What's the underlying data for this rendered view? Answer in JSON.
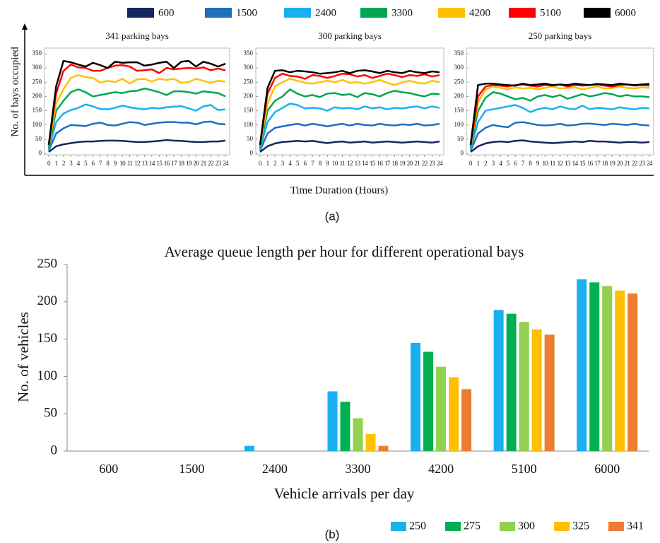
{
  "chart_data": [
    {
      "type": "line",
      "title": "341 parking bays",
      "x": [
        0,
        1,
        2,
        3,
        4,
        5,
        6,
        7,
        8,
        9,
        10,
        11,
        12,
        13,
        14,
        15,
        16,
        17,
        18,
        19,
        20,
        21,
        22,
        23,
        24
      ],
      "xlim": [
        0,
        24
      ],
      "xticks": [
        0,
        1,
        2,
        3,
        4,
        5,
        6,
        7,
        8,
        9,
        10,
        11,
        12,
        13,
        14,
        15,
        16,
        17,
        18,
        19,
        20,
        21,
        22,
        23,
        24
      ],
      "ylim": [
        0,
        350
      ],
      "yticks": [
        0,
        50,
        100,
        150,
        200,
        250,
        300,
        350
      ],
      "series": [
        {
          "name": "600",
          "color": "#16275e",
          "values": [
            5,
            25,
            32,
            36,
            40,
            42,
            42,
            44,
            45,
            45,
            44,
            42,
            40,
            40,
            42,
            44,
            47,
            45,
            44,
            42,
            40,
            40,
            42,
            42,
            45
          ]
        },
        {
          "name": "1500",
          "color": "#1f6fbf",
          "values": [
            10,
            70,
            88,
            100,
            98,
            96,
            104,
            108,
            100,
            98,
            104,
            110,
            108,
            100,
            104,
            108,
            110,
            110,
            108,
            108,
            102,
            110,
            112,
            104,
            102
          ]
        },
        {
          "name": "2400",
          "color": "#1ab0f0",
          "values": [
            15,
            110,
            140,
            152,
            160,
            172,
            165,
            156,
            155,
            160,
            168,
            162,
            158,
            155,
            160,
            158,
            162,
            164,
            166,
            158,
            150,
            165,
            170,
            152,
            155
          ]
        },
        {
          "name": "3300",
          "color": "#00a651",
          "values": [
            20,
            150,
            185,
            215,
            225,
            215,
            200,
            205,
            210,
            215,
            212,
            218,
            220,
            228,
            222,
            215,
            205,
            218,
            218,
            215,
            210,
            218,
            215,
            212,
            200
          ]
        },
        {
          "name": "4200",
          "color": "#ffc000",
          "values": [
            25,
            175,
            225,
            265,
            275,
            268,
            265,
            248,
            255,
            250,
            262,
            245,
            260,
            262,
            252,
            262,
            258,
            262,
            248,
            250,
            262,
            255,
            248,
            255,
            252
          ]
        },
        {
          "name": "5100",
          "color": "#ff0000",
          "values": [
            28,
            210,
            290,
            312,
            302,
            300,
            290,
            290,
            300,
            308,
            310,
            305,
            290,
            292,
            295,
            282,
            300,
            295,
            298,
            300,
            298,
            302,
            292,
            298,
            292
          ]
        },
        {
          "name": "6000",
          "color": "#000000",
          "values": [
            30,
            235,
            325,
            320,
            312,
            305,
            318,
            310,
            300,
            322,
            318,
            320,
            320,
            308,
            312,
            318,
            322,
            300,
            322,
            325,
            305,
            322,
            315,
            305,
            315
          ]
        }
      ]
    },
    {
      "type": "line",
      "title": "300 parking bays",
      "x": [
        0,
        1,
        2,
        3,
        4,
        5,
        6,
        7,
        8,
        9,
        10,
        11,
        12,
        13,
        14,
        15,
        16,
        17,
        18,
        19,
        20,
        21,
        22,
        23,
        24
      ],
      "xlim": [
        0,
        24
      ],
      "xticks": [
        0,
        1,
        2,
        3,
        4,
        5,
        6,
        7,
        8,
        9,
        10,
        11,
        12,
        13,
        14,
        15,
        16,
        17,
        18,
        19,
        20,
        21,
        22,
        23,
        24
      ],
      "ylim": [
        0,
        350
      ],
      "yticks": [
        0,
        50,
        100,
        150,
        200,
        250,
        300,
        350
      ],
      "series": [
        {
          "name": "600",
          "color": "#16275e",
          "values": [
            5,
            25,
            35,
            40,
            42,
            44,
            42,
            44,
            40,
            36,
            40,
            42,
            38,
            40,
            42,
            38,
            40,
            42,
            40,
            38,
            40,
            42,
            40,
            38,
            42
          ]
        },
        {
          "name": "1500",
          "color": "#1f6fbf",
          "values": [
            10,
            70,
            90,
            95,
            100,
            104,
            98,
            104,
            100,
            95,
            100,
            104,
            98,
            104,
            100,
            98,
            104,
            100,
            98,
            102,
            100,
            104,
            98,
            100,
            104
          ]
        },
        {
          "name": "2400",
          "color": "#1ab0f0",
          "values": [
            15,
            110,
            145,
            160,
            175,
            170,
            158,
            160,
            158,
            150,
            162,
            158,
            160,
            155,
            165,
            158,
            162,
            155,
            160,
            158,
            162,
            165,
            158,
            165,
            160
          ]
        },
        {
          "name": "3300",
          "color": "#00a651",
          "values": [
            20,
            150,
            185,
            200,
            225,
            210,
            200,
            205,
            198,
            210,
            212,
            205,
            208,
            198,
            212,
            208,
            200,
            212,
            220,
            215,
            212,
            205,
            200,
            210,
            208
          ]
        },
        {
          "name": "4200",
          "color": "#ffc000",
          "values": [
            25,
            175,
            235,
            250,
            262,
            255,
            248,
            245,
            250,
            255,
            250,
            258,
            248,
            250,
            245,
            250,
            258,
            248,
            240,
            250,
            255,
            248,
            245,
            255,
            250
          ]
        },
        {
          "name": "5100",
          "color": "#ff0000",
          "values": [
            28,
            210,
            265,
            280,
            272,
            270,
            262,
            275,
            272,
            265,
            272,
            280,
            278,
            270,
            275,
            265,
            272,
            280,
            275,
            268,
            275,
            272,
            278,
            270,
            275
          ]
        },
        {
          "name": "6000",
          "color": "#000000",
          "values": [
            30,
            230,
            290,
            292,
            285,
            290,
            288,
            285,
            280,
            282,
            285,
            290,
            282,
            290,
            292,
            288,
            282,
            290,
            285,
            282,
            290,
            285,
            282,
            288,
            285
          ]
        }
      ]
    },
    {
      "type": "line",
      "title": "250 parking bays",
      "x": [
        0,
        1,
        2,
        3,
        4,
        5,
        6,
        7,
        8,
        9,
        10,
        11,
        12,
        13,
        14,
        15,
        16,
        17,
        18,
        19,
        20,
        21,
        22,
        23,
        24
      ],
      "xlim": [
        0,
        24
      ],
      "xticks": [
        0,
        1,
        2,
        3,
        4,
        5,
        6,
        7,
        8,
        9,
        10,
        11,
        12,
        13,
        14,
        15,
        16,
        17,
        18,
        19,
        20,
        21,
        22,
        23,
        24
      ],
      "ylim": [
        0,
        350
      ],
      "yticks": [
        0,
        50,
        100,
        150,
        200,
        250,
        300,
        350
      ],
      "series": [
        {
          "name": "600",
          "color": "#16275e",
          "values": [
            5,
            25,
            35,
            40,
            42,
            40,
            44,
            46,
            42,
            40,
            38,
            36,
            38,
            40,
            42,
            40,
            44,
            42,
            42,
            40,
            38,
            40,
            40,
            38,
            40
          ]
        },
        {
          "name": "1500",
          "color": "#1f6fbf",
          "values": [
            10,
            70,
            90,
            100,
            95,
            92,
            108,
            110,
            105,
            100,
            98,
            100,
            104,
            98,
            100,
            104,
            105,
            102,
            100,
            104,
            102,
            100,
            104,
            100,
            98
          ]
        },
        {
          "name": "2400",
          "color": "#1ab0f0",
          "values": [
            15,
            110,
            150,
            155,
            160,
            165,
            170,
            160,
            145,
            155,
            160,
            155,
            165,
            158,
            155,
            168,
            155,
            160,
            158,
            155,
            162,
            158,
            155,
            160,
            158
          ]
        },
        {
          "name": "3300",
          "color": "#00a651",
          "values": [
            20,
            150,
            195,
            215,
            210,
            200,
            190,
            195,
            185,
            200,
            205,
            198,
            205,
            192,
            200,
            208,
            200,
            205,
            212,
            208,
            200,
            205,
            200,
            200,
            198
          ]
        },
        {
          "name": "4200",
          "color": "#ffc000",
          "values": [
            25,
            180,
            225,
            235,
            230,
            225,
            232,
            228,
            230,
            225,
            230,
            235,
            228,
            230,
            232,
            225,
            230,
            235,
            228,
            230,
            235,
            230,
            228,
            232,
            230
          ]
        },
        {
          "name": "5100",
          "color": "#ff0000",
          "values": [
            28,
            200,
            235,
            240,
            238,
            235,
            240,
            242,
            238,
            235,
            240,
            238,
            242,
            235,
            240,
            238,
            240,
            242,
            238,
            235,
            240,
            242,
            238,
            240,
            238
          ]
        },
        {
          "name": "6000",
          "color": "#000000",
          "values": [
            30,
            240,
            245,
            245,
            242,
            240,
            238,
            245,
            240,
            242,
            245,
            240,
            242,
            240,
            245,
            242,
            240,
            244,
            242,
            240,
            245,
            242,
            240,
            242,
            244
          ]
        }
      ]
    },
    {
      "type": "bar",
      "title": "Average queue length per hour for different operational bays",
      "xlabel": "Vehicle arrivals per day",
      "ylabel": "No. of vehicles",
      "categories": [
        "600",
        "1500",
        "2400",
        "3300",
        "4200",
        "5100",
        "6000"
      ],
      "ylim": [
        0,
        250
      ],
      "yticks": [
        0,
        50,
        100,
        150,
        200,
        250
      ],
      "series": [
        {
          "name": "250",
          "color": "#1ab0f0",
          "values": [
            0,
            0,
            7,
            80,
            145,
            189,
            230
          ]
        },
        {
          "name": "275",
          "color": "#00b050",
          "values": [
            0,
            0,
            0,
            66,
            133,
            184,
            226
          ]
        },
        {
          "name": "300",
          "color": "#92d050",
          "values": [
            0,
            0,
            0,
            44,
            113,
            173,
            221
          ]
        },
        {
          "name": "325",
          "color": "#ffc000",
          "values": [
            0,
            0,
            0,
            23,
            99,
            163,
            215
          ]
        },
        {
          "name": "341",
          "color": "#ed7d31",
          "values": [
            0,
            0,
            0,
            7,
            83,
            156,
            211
          ]
        }
      ]
    }
  ],
  "panels": [
    {
      "caption": "(a)",
      "ylabel": "No. of bays occupied",
      "xlabel": "Time Duration (Hours)"
    },
    {
      "caption": "(b)"
    }
  ]
}
